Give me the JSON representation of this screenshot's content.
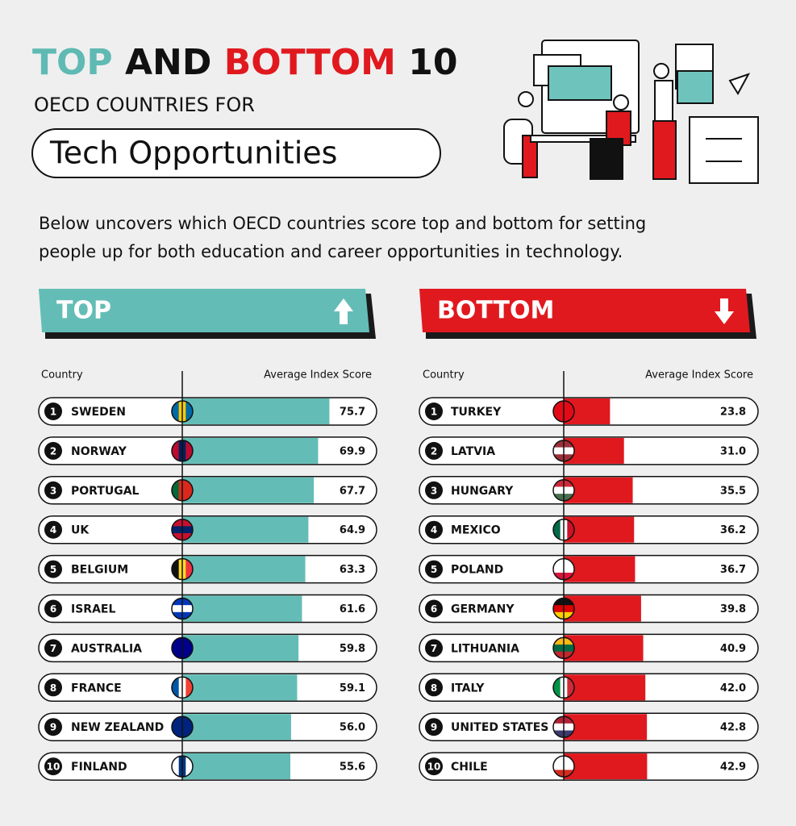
{
  "header": {
    "title_parts": [
      "TOP",
      "AND",
      "BOTTOM",
      "10"
    ],
    "subtitle": "OECD COUNTRIES FOR",
    "highlight": "Tech Opportunities",
    "intro": [
      "Below uncovers which OECD countries score top and bottom for setting",
      "people up for both education and career opportunities in technology."
    ]
  },
  "chart_data": [
    {
      "type": "bar",
      "orientation": "horizontal",
      "title": "TOP",
      "category_label": "Country",
      "value_label": "Average Index Score",
      "ranks": [
        1,
        2,
        3,
        4,
        5,
        6,
        7,
        8,
        9,
        10
      ],
      "categories": [
        "SWEDEN",
        "NORWAY",
        "PORTUGAL",
        "UK",
        "BELGIUM",
        "ISRAEL",
        "AUSTRALIA",
        "FRANCE",
        "NEW ZEALAND",
        "FINLAND"
      ],
      "values": [
        75.7,
        69.9,
        67.7,
        64.9,
        63.3,
        61.6,
        59.8,
        59.1,
        56.0,
        55.6
      ],
      "value_labels": [
        "75.7",
        "69.9",
        "67.7",
        "64.9",
        "63.3",
        "61.6",
        "59.8",
        "59.1",
        "56.0",
        "55.6"
      ],
      "color": "#63bdb6",
      "xlim": [
        0,
        100
      ]
    },
    {
      "type": "bar",
      "orientation": "horizontal",
      "title": "BOTTOM",
      "category_label": "Country",
      "value_label": "Average Index Score",
      "ranks": [
        1,
        2,
        3,
        4,
        5,
        6,
        7,
        8,
        9,
        10
      ],
      "categories": [
        "TURKEY",
        "LATVIA",
        "HUNGARY",
        "MEXICO",
        "POLAND",
        "GERMANY",
        "LITHUANIA",
        "ITALY",
        "UNITED STATES",
        "CHILE"
      ],
      "values": [
        23.8,
        31.0,
        35.5,
        36.2,
        36.7,
        39.8,
        40.9,
        42.0,
        42.8,
        42.9
      ],
      "value_labels": [
        "23.8",
        "31.0",
        "35.5",
        "36.2",
        "36.7",
        "39.8",
        "40.9",
        "42.0",
        "42.8",
        "42.9"
      ],
      "color": "#e0191f",
      "xlim": [
        0,
        100
      ]
    }
  ]
}
